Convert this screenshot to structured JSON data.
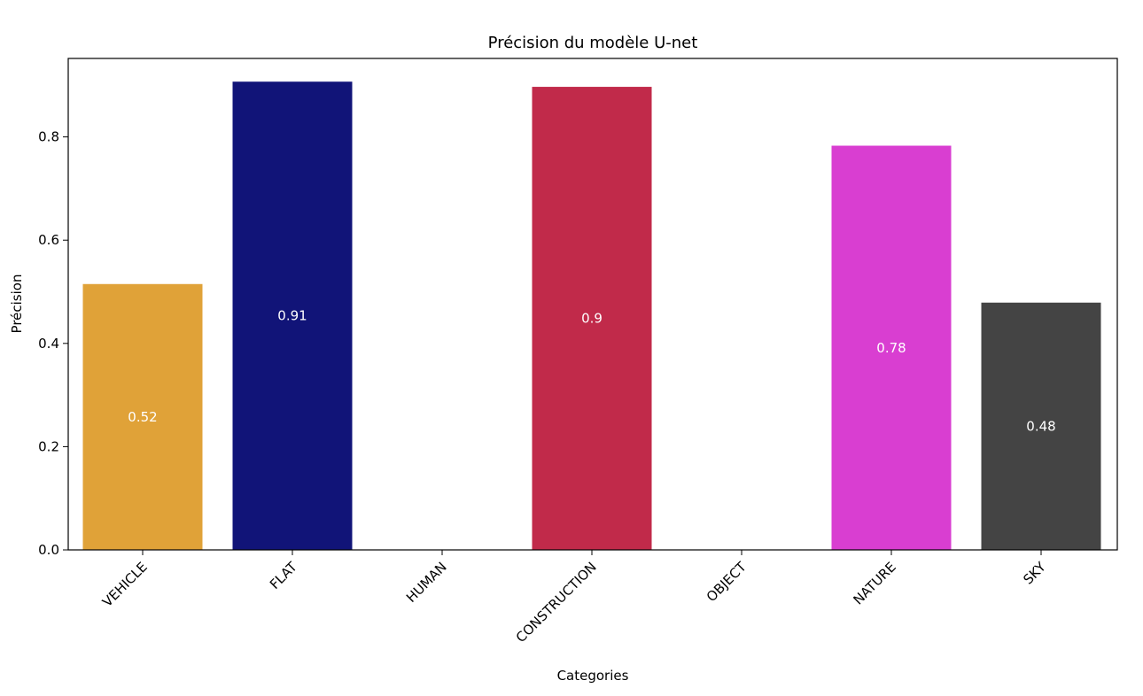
{
  "chart_data": {
    "type": "bar",
    "title": "Précision du modèle U-net",
    "xlabel": "Categories",
    "ylabel": "Précision",
    "categories": [
      "VEHICLE",
      "FLAT",
      "HUMAN",
      "CONSTRUCTION",
      "OBJECT",
      "NATURE",
      "SKY"
    ],
    "values": [
      0.515,
      0.907,
      0.0,
      0.897,
      0.0,
      0.783,
      0.479
    ],
    "bar_labels": [
      "0.52",
      "0.91",
      "",
      "0.9",
      "",
      "0.78",
      "0.48"
    ],
    "colors": [
      "#e0a238",
      "#111478",
      "#ffffff",
      "#c12a4a",
      "#ffffff",
      "#d93ed1",
      "#444444"
    ],
    "label_color": "#ffffff",
    "yticks": [
      0.0,
      0.2,
      0.4,
      0.6,
      0.8
    ],
    "ytick_labels": [
      "0.0",
      "0.2",
      "0.4",
      "0.6",
      "0.8"
    ],
    "ylim": [
      0,
      0.952
    ],
    "grid": false,
    "legend": "none",
    "xtick_rotation": 45
  }
}
